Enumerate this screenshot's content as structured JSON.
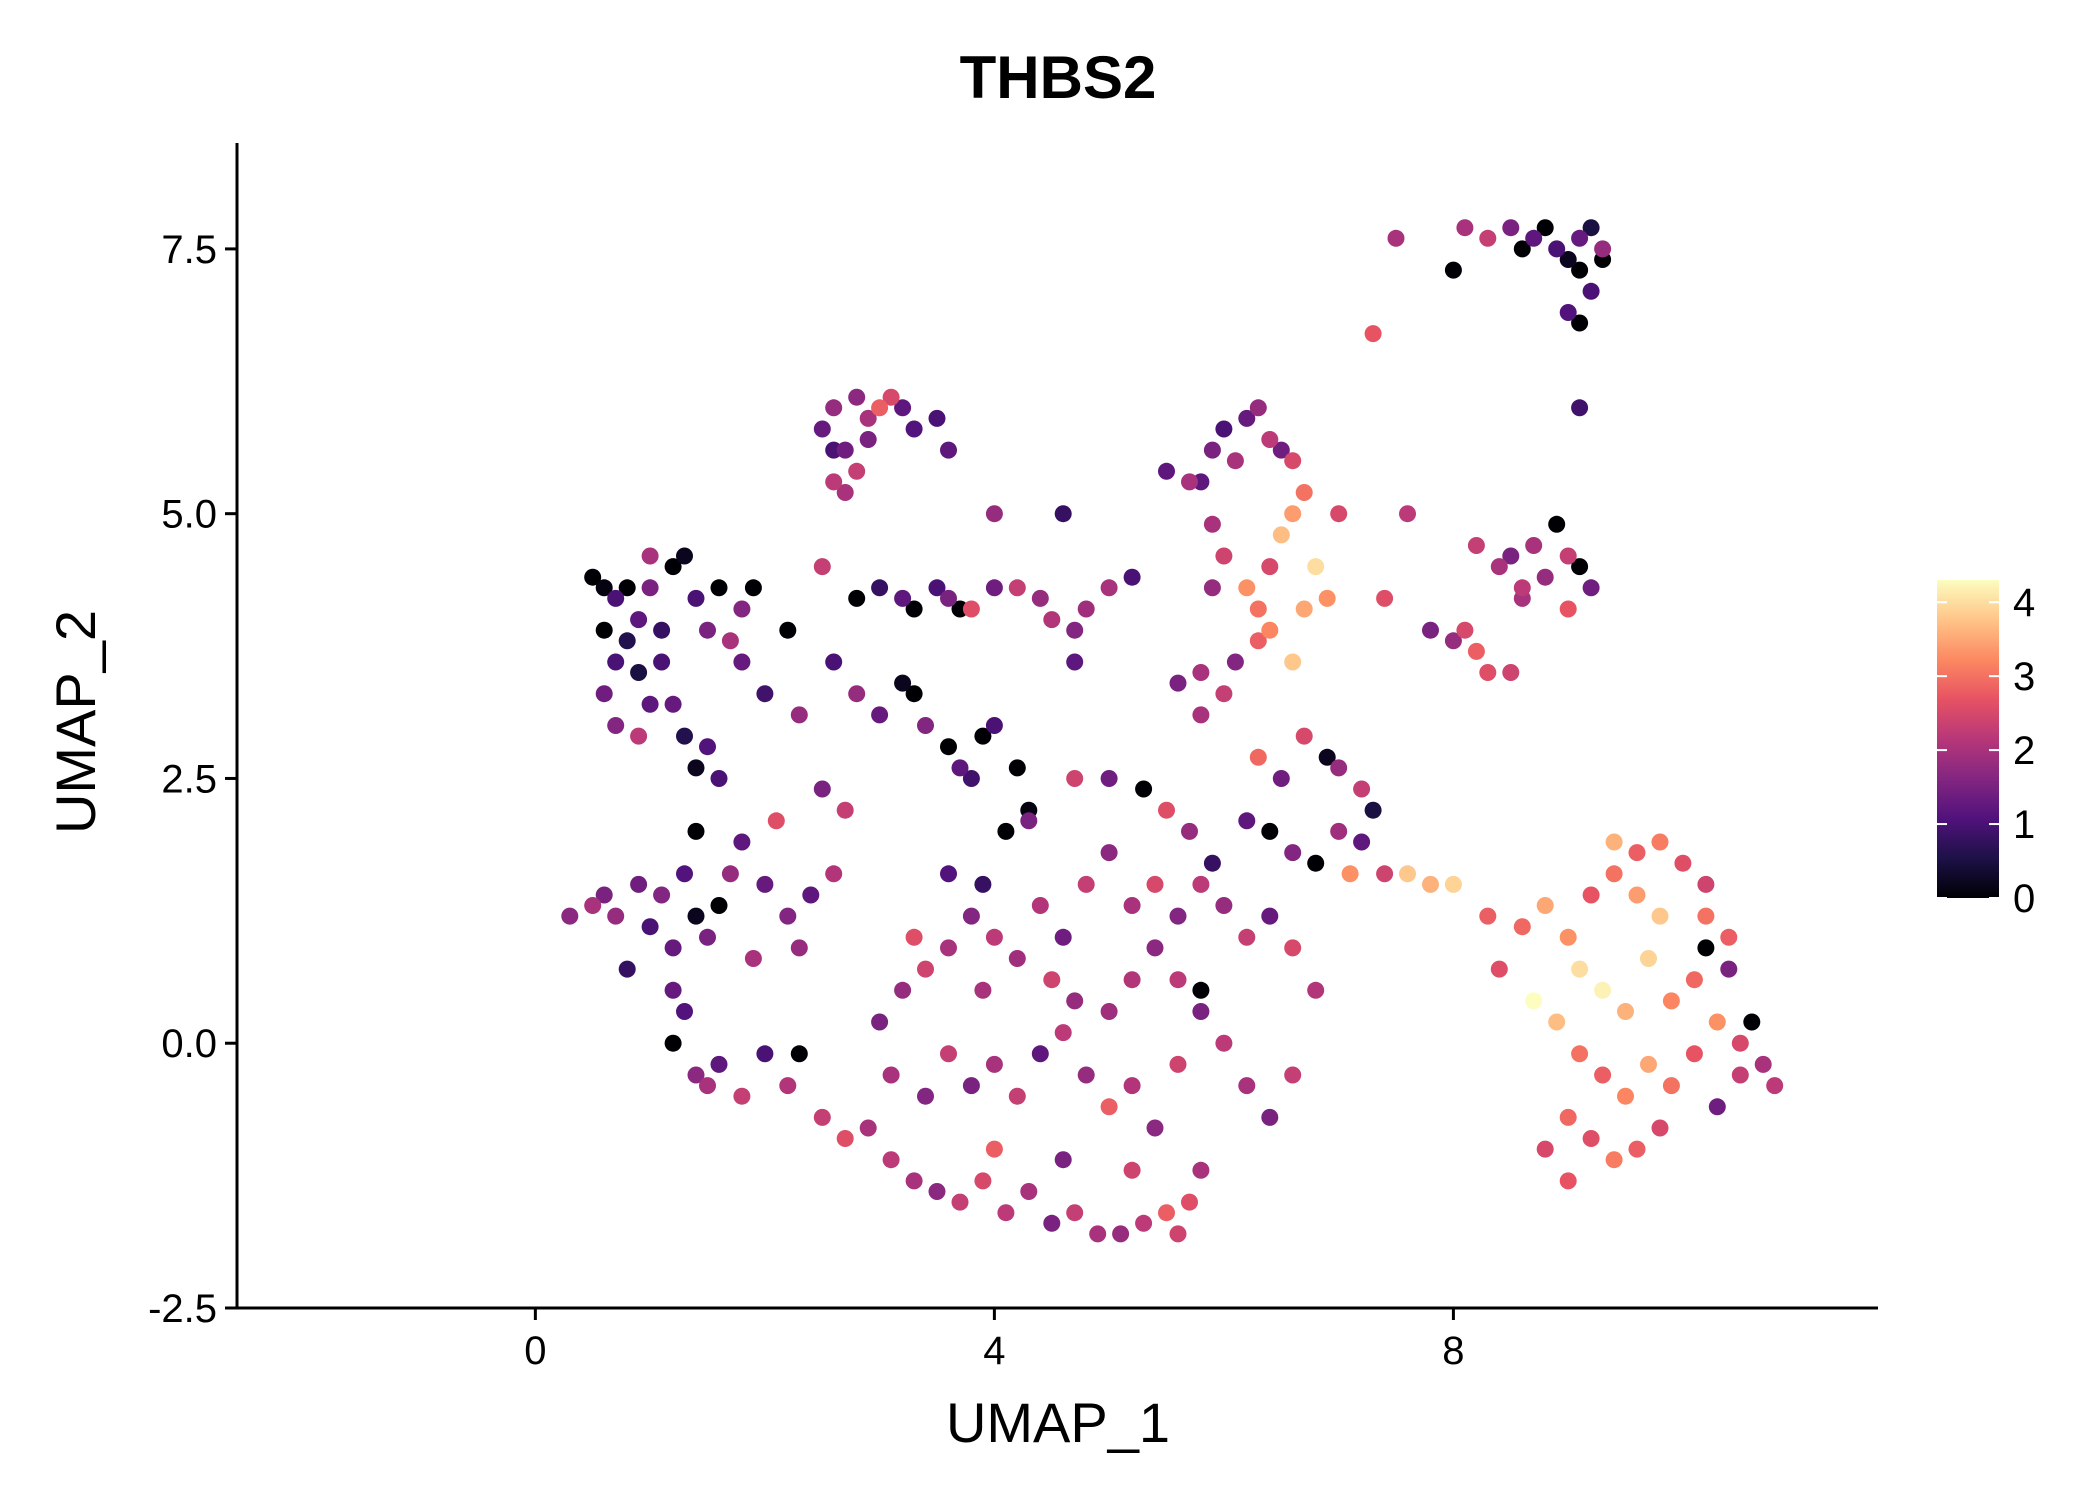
{
  "chart_data": {
    "type": "scatter",
    "title": "THBS2",
    "xlabel": "UMAP_1",
    "ylabel": "UMAP_2",
    "xlim": [
      -2.6,
      11.7
    ],
    "ylim": [
      -2.5,
      8.5
    ],
    "x_ticks": [
      {
        "value": 0,
        "label": "0"
      },
      {
        "value": 4,
        "label": "4"
      },
      {
        "value": 8,
        "label": "8"
      }
    ],
    "y_ticks": [
      {
        "value": -2.5,
        "label": "-2.5"
      },
      {
        "value": 0.0,
        "label": "0.0"
      },
      {
        "value": 2.5,
        "label": "2.5"
      },
      {
        "value": 5.0,
        "label": "5.0"
      },
      {
        "value": 7.5,
        "label": "7.5"
      }
    ],
    "color_scale": {
      "name": "magma",
      "min": 0,
      "max": 4.3,
      "stops": [
        "#000004",
        "#1d1147",
        "#51127c",
        "#832681",
        "#b73779",
        "#e75263",
        "#fc8961",
        "#fec488",
        "#fcfdbf"
      ],
      "ticks": [
        {
          "value": 0,
          "label": "0"
        },
        {
          "value": 1,
          "label": "1"
        },
        {
          "value": 2,
          "label": "2"
        },
        {
          "value": 3,
          "label": "3"
        },
        {
          "value": 4,
          "label": "4"
        }
      ],
      "legend_position": "right"
    },
    "points": [
      [
        8.0,
        7.3,
        0.0
      ],
      [
        8.1,
        7.7,
        2.0
      ],
      [
        8.3,
        7.6,
        2.3
      ],
      [
        8.5,
        7.7,
        1.5
      ],
      [
        8.6,
        7.5,
        0.0
      ],
      [
        8.7,
        7.6,
        1.2
      ],
      [
        8.8,
        7.7,
        0.0
      ],
      [
        8.9,
        7.5,
        1.0
      ],
      [
        9.0,
        7.4,
        0.2
      ],
      [
        9.1,
        7.6,
        1.3
      ],
      [
        9.2,
        7.7,
        0.5
      ],
      [
        9.3,
        7.5,
        1.8
      ],
      [
        9.1,
        7.3,
        0.0
      ],
      [
        9.2,
        7.1,
        1.0
      ],
      [
        9.3,
        7.4,
        0.0
      ],
      [
        9.0,
        6.9,
        1.1
      ],
      [
        9.1,
        6.8,
        0.0
      ],
      [
        7.5,
        7.6,
        2.0
      ],
      [
        7.3,
        6.7,
        2.7
      ],
      [
        9.1,
        6.0,
        0.9
      ],
      [
        2.5,
        5.8,
        1.3
      ],
      [
        2.6,
        6.0,
        1.8
      ],
      [
        2.7,
        5.6,
        1.4
      ],
      [
        2.8,
        6.1,
        1.7
      ],
      [
        2.9,
        5.9,
        2.0
      ],
      [
        3.0,
        6.0,
        2.8
      ],
      [
        3.1,
        6.1,
        2.5
      ],
      [
        3.2,
        6.0,
        1.2
      ],
      [
        2.6,
        5.3,
        2.2
      ],
      [
        2.7,
        5.2,
        2.0
      ],
      [
        2.8,
        5.4,
        2.3
      ],
      [
        2.6,
        5.6,
        1.0
      ],
      [
        3.3,
        5.8,
        1.1
      ],
      [
        3.5,
        5.9,
        1.0
      ],
      [
        3.6,
        5.6,
        1.2
      ],
      [
        2.9,
        5.7,
        1.5
      ],
      [
        0.5,
        4.4,
        0.0
      ],
      [
        0.6,
        4.3,
        0.1
      ],
      [
        0.7,
        4.2,
        1.0
      ],
      [
        0.8,
        4.3,
        0.0
      ],
      [
        0.9,
        4.0,
        1.2
      ],
      [
        1.0,
        4.3,
        1.5
      ],
      [
        0.6,
        3.9,
        0.0
      ],
      [
        0.7,
        3.6,
        1.0
      ],
      [
        0.8,
        3.8,
        0.6
      ],
      [
        0.9,
        3.5,
        0.5
      ],
      [
        1.0,
        3.2,
        1.2
      ],
      [
        1.1,
        3.9,
        0.8
      ],
      [
        1.2,
        4.5,
        0.0
      ],
      [
        1.3,
        4.6,
        0.2
      ],
      [
        1.4,
        4.2,
        1.0
      ],
      [
        1.5,
        3.9,
        1.5
      ],
      [
        1.6,
        4.3,
        0.0
      ],
      [
        1.7,
        3.8,
        2.0
      ],
      [
        1.8,
        4.1,
        1.6
      ],
      [
        1.9,
        4.3,
        0.0
      ],
      [
        1.0,
        4.6,
        2.0
      ],
      [
        1.1,
        3.6,
        1.0
      ],
      [
        1.2,
        3.2,
        1.3
      ],
      [
        1.3,
        2.9,
        0.6
      ],
      [
        1.4,
        2.6,
        0.2
      ],
      [
        1.5,
        2.8,
        1.1
      ],
      [
        0.6,
        3.3,
        1.4
      ],
      [
        0.7,
        3.0,
        1.6
      ],
      [
        0.9,
        2.9,
        2.2
      ],
      [
        1.6,
        2.5,
        1.0
      ],
      [
        2.0,
        3.3,
        0.9
      ],
      [
        2.2,
        3.9,
        0.0
      ],
      [
        2.3,
        3.1,
        1.8
      ],
      [
        1.8,
        3.6,
        1.3
      ],
      [
        1.4,
        2.0,
        0.0
      ],
      [
        2.8,
        4.2,
        0.0
      ],
      [
        3.0,
        4.3,
        0.8
      ],
      [
        3.2,
        4.2,
        1.2
      ],
      [
        3.3,
        4.1,
        0.0
      ],
      [
        3.5,
        4.3,
        1.0
      ],
      [
        3.6,
        4.2,
        1.5
      ],
      [
        3.7,
        4.1,
        0.0
      ],
      [
        2.5,
        4.5,
        2.3
      ],
      [
        2.6,
        3.6,
        1.0
      ],
      [
        2.8,
        3.3,
        1.8
      ],
      [
        3.0,
        3.1,
        1.3
      ],
      [
        3.2,
        3.4,
        0.2
      ],
      [
        3.3,
        3.3,
        0.0
      ],
      [
        3.4,
        3.0,
        1.6
      ],
      [
        3.6,
        2.8,
        0.0
      ],
      [
        3.7,
        2.6,
        1.2
      ],
      [
        3.8,
        2.5,
        0.9
      ],
      [
        3.9,
        2.9,
        0.0
      ],
      [
        4.0,
        3.0,
        1.0
      ],
      [
        4.2,
        2.6,
        0.0
      ],
      [
        4.3,
        2.2,
        0.1
      ],
      [
        4.1,
        2.0,
        0.0
      ],
      [
        3.6,
        1.6,
        1.1
      ],
      [
        3.9,
        1.5,
        0.8
      ],
      [
        4.0,
        4.3,
        1.4
      ],
      [
        4.2,
        4.3,
        2.3
      ],
      [
        4.4,
        4.2,
        1.8
      ],
      [
        4.5,
        4.0,
        2.1
      ],
      [
        4.7,
        3.9,
        1.6
      ],
      [
        4.8,
        4.1,
        1.9
      ],
      [
        5.0,
        4.3,
        2.0
      ],
      [
        5.2,
        4.4,
        1.0
      ],
      [
        4.6,
        5.0,
        0.8
      ],
      [
        4.0,
        5.0,
        1.8
      ],
      [
        3.8,
        4.1,
        2.6
      ],
      [
        4.7,
        3.6,
        1.2
      ],
      [
        5.5,
        5.4,
        1.2
      ],
      [
        5.7,
        5.3,
        2.0
      ],
      [
        5.9,
        5.6,
        1.5
      ],
      [
        6.0,
        5.8,
        1.0
      ],
      [
        6.1,
        5.5,
        2.0
      ],
      [
        6.2,
        5.9,
        1.3
      ],
      [
        6.3,
        6.0,
        1.8
      ],
      [
        6.4,
        5.7,
        2.2
      ],
      [
        6.5,
        5.6,
        1.4
      ],
      [
        6.6,
        5.5,
        2.5
      ],
      [
        5.8,
        5.3,
        1.2
      ],
      [
        5.9,
        4.9,
        2.0
      ],
      [
        6.0,
        4.6,
        2.4
      ],
      [
        6.2,
        4.3,
        3.3
      ],
      [
        6.3,
        4.1,
        3.0
      ],
      [
        6.4,
        4.5,
        2.5
      ],
      [
        6.5,
        4.8,
        3.7
      ],
      [
        6.6,
        5.0,
        3.4
      ],
      [
        6.7,
        5.2,
        3.0
      ],
      [
        6.8,
        4.5,
        4.0
      ],
      [
        6.9,
        4.2,
        3.3
      ],
      [
        6.7,
        4.1,
        3.5
      ],
      [
        6.3,
        3.8,
        2.8
      ],
      [
        6.1,
        3.6,
        1.6
      ],
      [
        6.0,
        3.3,
        2.3
      ],
      [
        5.8,
        3.5,
        2.0
      ],
      [
        5.6,
        3.4,
        1.5
      ],
      [
        5.9,
        4.3,
        1.8
      ],
      [
        6.4,
        3.9,
        3.2
      ],
      [
        6.6,
        3.6,
        3.8
      ],
      [
        7.0,
        5.0,
        2.5
      ],
      [
        7.6,
        5.0,
        2.2
      ],
      [
        7.4,
        4.2,
        2.6
      ],
      [
        8.2,
        4.7,
        2.3
      ],
      [
        8.4,
        4.5,
        2.0
      ],
      [
        8.5,
        4.6,
        1.5
      ],
      [
        8.6,
        4.3,
        2.2
      ],
      [
        8.7,
        4.7,
        2.0
      ],
      [
        8.8,
        4.4,
        1.8
      ],
      [
        8.9,
        4.9,
        0.0
      ],
      [
        9.0,
        4.6,
        2.3
      ],
      [
        9.1,
        4.5,
        0.0
      ],
      [
        9.2,
        4.3,
        1.4
      ],
      [
        8.1,
        3.9,
        2.5
      ],
      [
        8.2,
        3.7,
        2.8
      ],
      [
        8.3,
        3.5,
        2.6
      ],
      [
        8.0,
        3.8,
        1.8
      ],
      [
        8.5,
        3.5,
        2.4
      ],
      [
        8.6,
        4.2,
        2.0
      ],
      [
        9.0,
        4.1,
        2.7
      ],
      [
        7.8,
        3.9,
        1.5
      ],
      [
        0.3,
        1.2,
        1.7
      ],
      [
        0.5,
        1.3,
        2.0
      ],
      [
        0.6,
        1.4,
        1.5
      ],
      [
        0.7,
        1.2,
        1.8
      ],
      [
        0.8,
        0.7,
        0.8
      ],
      [
        0.9,
        1.5,
        1.4
      ],
      [
        1.0,
        1.1,
        1.0
      ],
      [
        1.1,
        1.4,
        1.6
      ],
      [
        1.2,
        0.9,
        1.3
      ],
      [
        1.3,
        1.6,
        1.1
      ],
      [
        1.4,
        1.2,
        0.2
      ],
      [
        1.5,
        1.0,
        1.5
      ],
      [
        1.6,
        1.3,
        0.0
      ],
      [
        1.7,
        1.6,
        1.8
      ],
      [
        1.8,
        1.9,
        1.2
      ],
      [
        1.9,
        0.8,
        2.0
      ],
      [
        2.0,
        1.5,
        1.3
      ],
      [
        2.1,
        2.1,
        2.6
      ],
      [
        2.2,
        1.2,
        1.6
      ],
      [
        2.3,
        0.9,
        1.8
      ],
      [
        2.4,
        1.4,
        1.2
      ],
      [
        2.5,
        2.4,
        1.5
      ],
      [
        2.6,
        1.6,
        2.1
      ],
      [
        2.7,
        2.2,
        2.3
      ],
      [
        1.2,
        0.5,
        1.3
      ],
      [
        1.3,
        0.3,
        1.1
      ],
      [
        1.2,
        0.0,
        0.0
      ],
      [
        1.4,
        -0.3,
        1.7
      ],
      [
        1.5,
        -0.4,
        2.0
      ],
      [
        1.6,
        -0.2,
        1.2
      ],
      [
        1.8,
        -0.5,
        2.3
      ],
      [
        2.0,
        -0.1,
        1.0
      ],
      [
        2.2,
        -0.4,
        2.1
      ],
      [
        2.3,
        -0.1,
        0.0
      ],
      [
        2.5,
        -0.7,
        2.3
      ],
      [
        2.7,
        -0.9,
        2.6
      ],
      [
        2.9,
        -0.8,
        2.0
      ],
      [
        3.1,
        -1.1,
        2.2
      ],
      [
        3.3,
        -1.3,
        2.0
      ],
      [
        3.5,
        -1.4,
        1.7
      ],
      [
        3.7,
        -1.5,
        2.3
      ],
      [
        3.9,
        -1.3,
        2.5
      ],
      [
        4.1,
        -1.6,
        2.2
      ],
      [
        4.3,
        -1.4,
        2.0
      ],
      [
        4.5,
        -1.7,
        1.5
      ],
      [
        4.7,
        -1.6,
        2.3
      ],
      [
        4.9,
        -1.8,
        2.0
      ],
      [
        5.1,
        -1.8,
        1.8
      ],
      [
        5.3,
        -1.7,
        2.2
      ],
      [
        5.5,
        -1.6,
        2.8
      ],
      [
        5.6,
        -1.8,
        2.4
      ],
      [
        5.7,
        -1.5,
        2.6
      ],
      [
        5.8,
        -1.2,
        2.0
      ],
      [
        5.2,
        -1.2,
        2.4
      ],
      [
        4.6,
        -1.1,
        1.5
      ],
      [
        4.0,
        -1.0,
        2.8
      ],
      [
        3.0,
        0.2,
        1.5
      ],
      [
        3.2,
        0.5,
        1.8
      ],
      [
        3.4,
        0.7,
        2.4
      ],
      [
        3.6,
        0.9,
        2.0
      ],
      [
        3.8,
        1.2,
        1.6
      ],
      [
        4.0,
        1.0,
        2.2
      ],
      [
        4.2,
        0.8,
        1.9
      ],
      [
        4.4,
        1.3,
        2.1
      ],
      [
        4.6,
        1.0,
        1.4
      ],
      [
        4.8,
        1.5,
        2.3
      ],
      [
        5.0,
        1.8,
        1.7
      ],
      [
        5.2,
        1.3,
        2.0
      ],
      [
        5.4,
        1.5,
        2.5
      ],
      [
        5.6,
        1.2,
        1.6
      ],
      [
        5.8,
        1.5,
        2.2
      ],
      [
        6.0,
        1.3,
        1.8
      ],
      [
        6.2,
        1.0,
        2.3
      ],
      [
        6.4,
        1.2,
        1.3
      ],
      [
        6.6,
        0.9,
        2.5
      ],
      [
        6.8,
        0.5,
        2.1
      ],
      [
        3.1,
        -0.3,
        2.0
      ],
      [
        3.4,
        -0.5,
        1.6
      ],
      [
        3.6,
        -0.1,
        2.3
      ],
      [
        3.8,
        -0.4,
        1.5
      ],
      [
        4.0,
        -0.2,
        2.0
      ],
      [
        4.2,
        -0.5,
        2.3
      ],
      [
        4.4,
        -0.1,
        1.2
      ],
      [
        4.6,
        0.1,
        2.2
      ],
      [
        4.8,
        -0.3,
        1.8
      ],
      [
        5.0,
        -0.6,
        2.8
      ],
      [
        5.2,
        -0.4,
        2.1
      ],
      [
        5.4,
        -0.8,
        1.7
      ],
      [
        5.6,
        -0.2,
        2.4
      ],
      [
        5.8,
        0.3,
        1.5
      ],
      [
        6.0,
        0.0,
        2.2
      ],
      [
        6.2,
        -0.4,
        2.0
      ],
      [
        6.4,
        -0.7,
        1.5
      ],
      [
        6.6,
        -0.3,
        2.3
      ],
      [
        5.0,
        0.3,
        1.9
      ],
      [
        5.2,
        0.6,
        2.1
      ],
      [
        5.4,
        0.9,
        1.7
      ],
      [
        5.6,
        0.6,
        2.2
      ],
      [
        4.5,
        0.6,
        2.4
      ],
      [
        4.7,
        0.4,
        1.8
      ],
      [
        3.9,
        0.5,
        2.0
      ],
      [
        3.3,
        1.0,
        2.6
      ],
      [
        5.8,
        0.5,
        0.0
      ],
      [
        5.0,
        2.5,
        1.4
      ],
      [
        5.3,
        2.4,
        0.0
      ],
      [
        5.5,
        2.2,
        2.6
      ],
      [
        5.7,
        2.0,
        1.8
      ],
      [
        5.9,
        1.7,
        0.8
      ],
      [
        6.2,
        2.1,
        1.2
      ],
      [
        6.4,
        2.0,
        0.0
      ],
      [
        6.6,
        1.8,
        1.6
      ],
      [
        6.8,
        1.7,
        0.0
      ],
      [
        7.0,
        2.0,
        1.9
      ],
      [
        7.2,
        2.4,
        2.3
      ],
      [
        6.5,
        2.5,
        1.4
      ],
      [
        6.7,
        2.9,
        2.5
      ],
      [
        6.9,
        2.7,
        0.2
      ],
      [
        7.0,
        2.6,
        1.8
      ],
      [
        6.3,
        2.7,
        2.9
      ],
      [
        4.7,
        2.5,
        2.4
      ],
      [
        4.3,
        2.1,
        1.5
      ],
      [
        5.8,
        3.1,
        2.0
      ],
      [
        7.2,
        1.9,
        1.2
      ],
      [
        7.4,
        1.6,
        2.4
      ],
      [
        7.6,
        1.6,
        3.8
      ],
      [
        7.8,
        1.5,
        3.6
      ],
      [
        8.0,
        1.5,
        3.9
      ],
      [
        8.3,
        1.2,
        2.8
      ],
      [
        8.4,
        0.7,
        2.6
      ],
      [
        7.3,
        2.2,
        0.5
      ],
      [
        7.1,
        1.6,
        3.3
      ],
      [
        8.6,
        1.1,
        2.9
      ],
      [
        8.8,
        1.3,
        3.5
      ],
      [
        9.0,
        1.0,
        3.3
      ],
      [
        9.2,
        1.4,
        2.7
      ],
      [
        9.4,
        1.6,
        3.0
      ],
      [
        9.6,
        1.8,
        2.8
      ],
      [
        9.8,
        1.9,
        3.1
      ],
      [
        10.0,
        1.7,
        2.6
      ],
      [
        10.2,
        1.5,
        2.4
      ],
      [
        10.4,
        1.0,
        2.8
      ],
      [
        9.1,
        0.7,
        4.0
      ],
      [
        9.3,
        0.5,
        4.2
      ],
      [
        9.5,
        0.3,
        3.6
      ],
      [
        9.7,
        0.8,
        3.9
      ],
      [
        9.9,
        0.4,
        3.2
      ],
      [
        10.1,
        0.6,
        2.9
      ],
      [
        10.3,
        0.2,
        3.3
      ],
      [
        10.5,
        0.0,
        2.5
      ],
      [
        10.7,
        -0.2,
        2.0
      ],
      [
        10.8,
        -0.4,
        2.2
      ],
      [
        8.7,
        0.4,
        4.3
      ],
      [
        8.9,
        0.2,
        3.7
      ],
      [
        9.1,
        -0.1,
        3.0
      ],
      [
        9.3,
        -0.3,
        2.8
      ],
      [
        9.5,
        -0.5,
        3.2
      ],
      [
        9.7,
        -0.2,
        3.5
      ],
      [
        9.9,
        -0.4,
        3.0
      ],
      [
        10.1,
        -0.1,
        2.7
      ],
      [
        10.3,
        -0.6,
        1.4
      ],
      [
        10.5,
        -0.3,
        2.3
      ],
      [
        10.6,
        0.2,
        0.0
      ],
      [
        10.4,
        0.7,
        1.5
      ],
      [
        10.2,
        1.2,
        3.0
      ],
      [
        9.8,
        1.2,
        3.8
      ],
      [
        9.6,
        1.4,
        3.4
      ],
      [
        9.0,
        -0.7,
        2.9
      ],
      [
        9.2,
        -0.9,
        2.6
      ],
      [
        9.4,
        -1.1,
        3.1
      ],
      [
        9.6,
        -1.0,
        2.8
      ],
      [
        9.8,
        -0.8,
        2.5
      ],
      [
        8.8,
        -1.0,
        2.5
      ],
      [
        9.0,
        -1.3,
        2.7
      ],
      [
        9.4,
        1.9,
        3.6
      ],
      [
        10.2,
        0.9,
        0.0
      ]
    ]
  }
}
